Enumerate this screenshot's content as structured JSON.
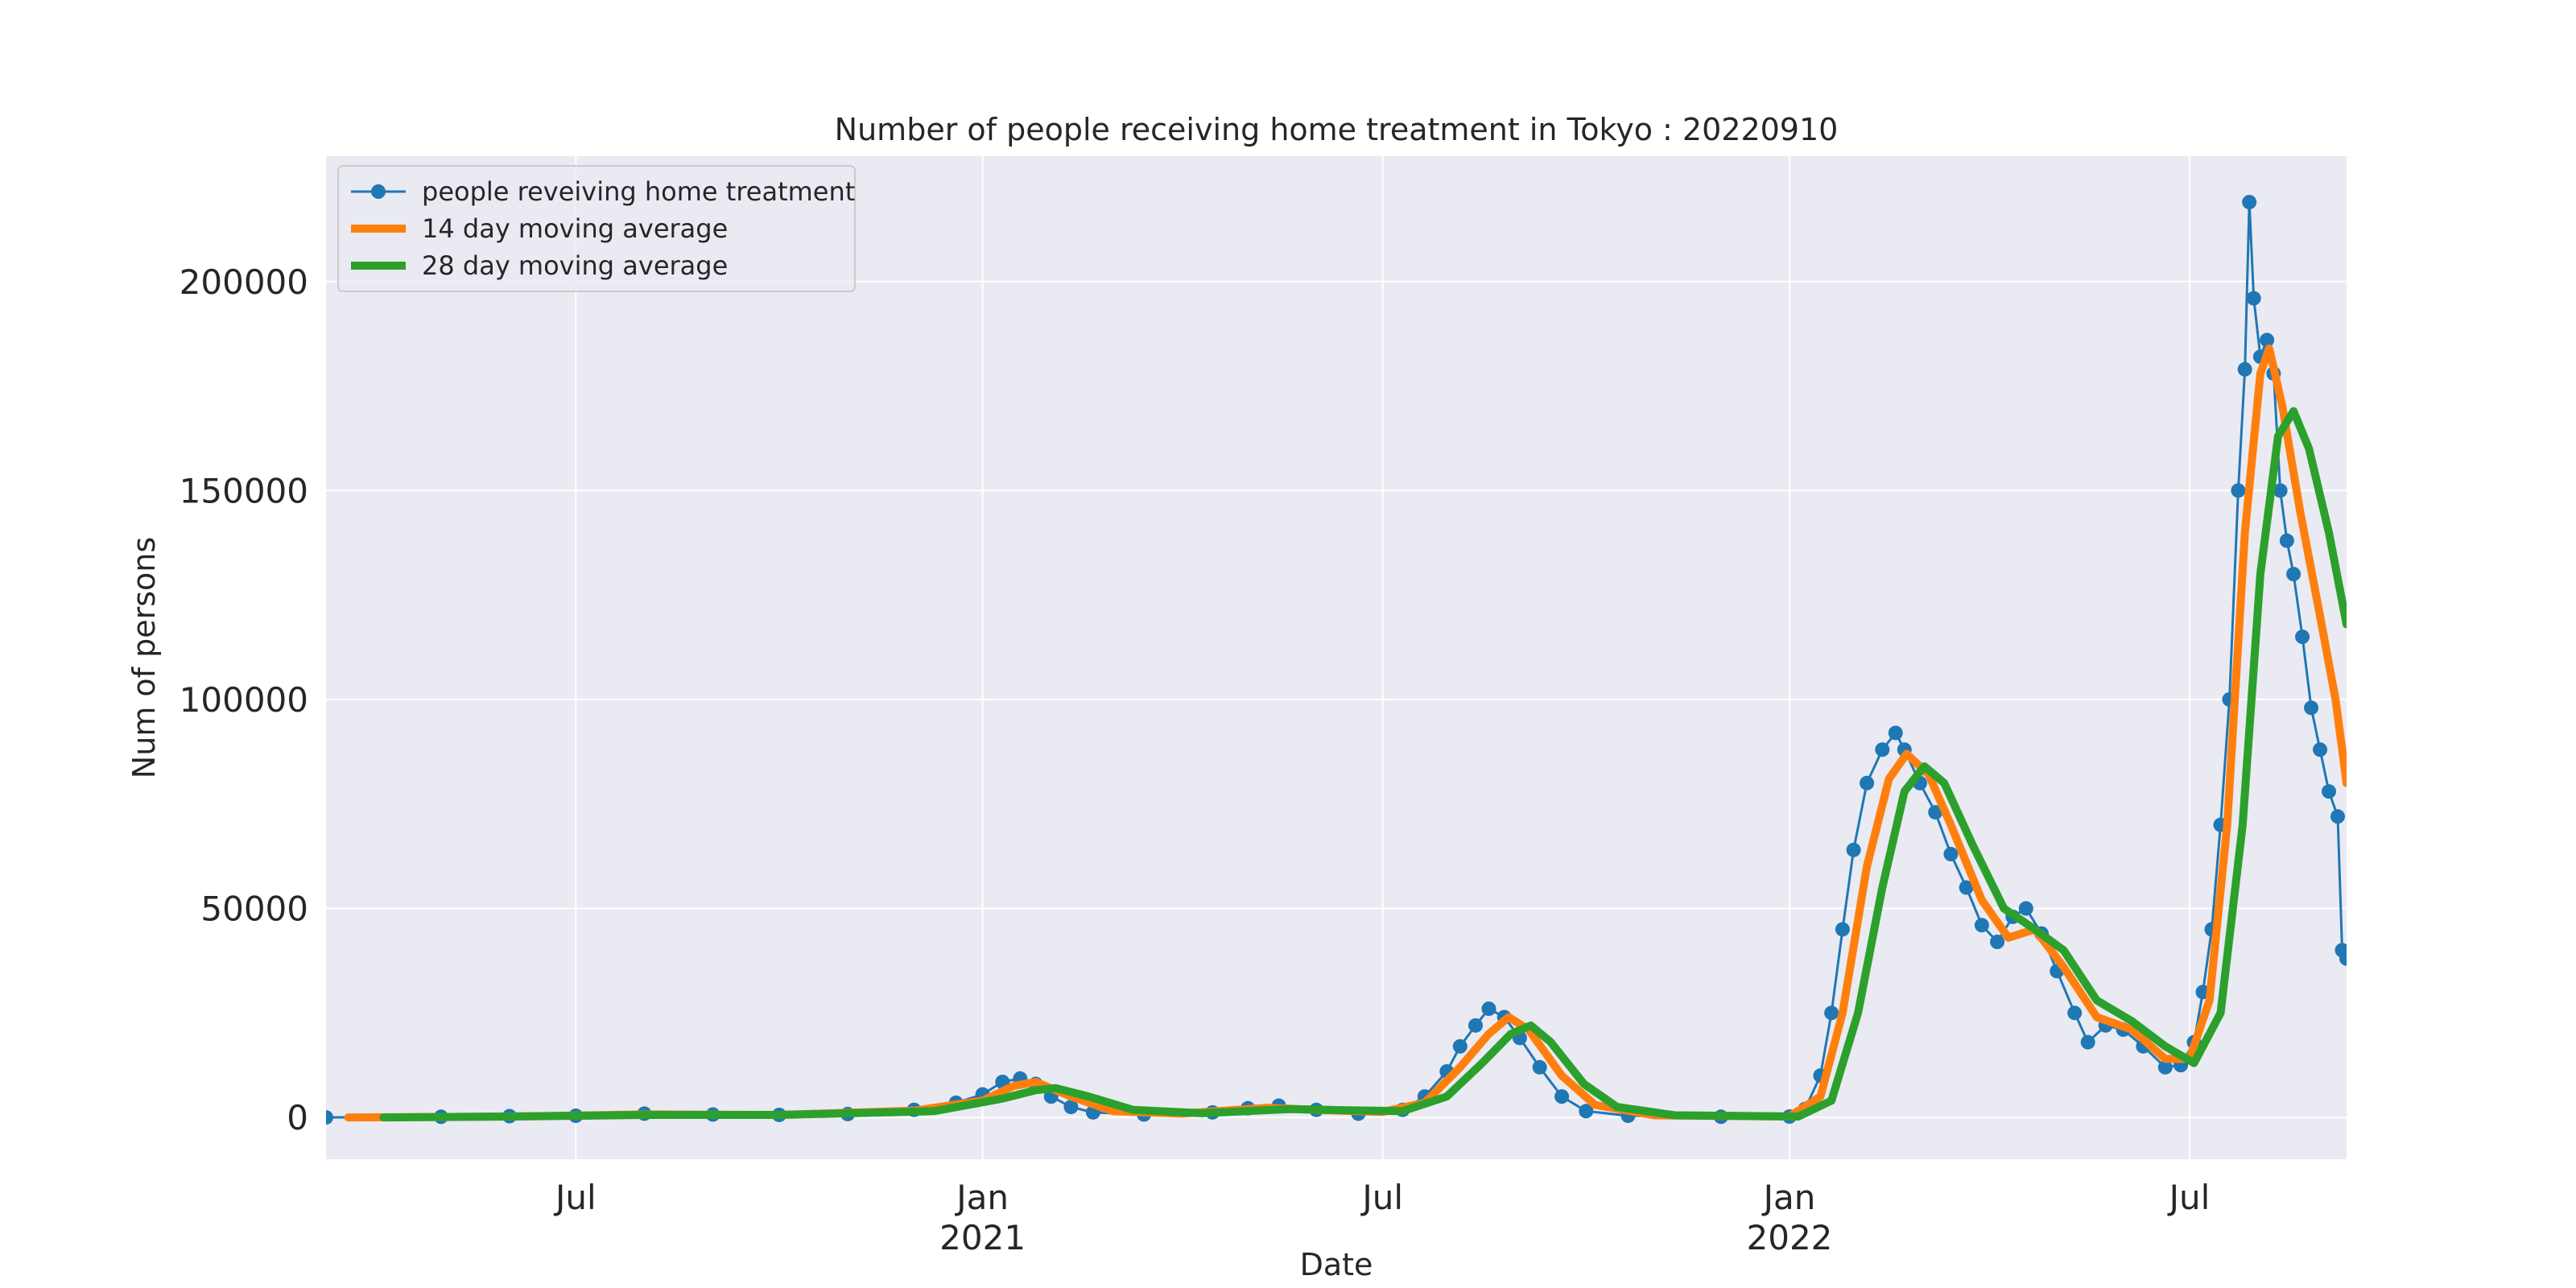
{
  "chart_data": {
    "type": "line",
    "title": "Number of people receiving home treatment in Tokyo : 20220910",
    "xlabel": "Date",
    "ylabel": "Num of persons",
    "x_start": "2020-03-10",
    "x_end": "2022-09-10",
    "ylim": [
      -10000,
      230000
    ],
    "y_ticks": [
      0,
      50000,
      100000,
      150000,
      200000
    ],
    "x_ticks": [
      {
        "date": "2020-07-01",
        "label": "Jul",
        "sublabel": ""
      },
      {
        "date": "2021-01-01",
        "label": "Jan",
        "sublabel": "2021"
      },
      {
        "date": "2021-07-01",
        "label": "Jul",
        "sublabel": ""
      },
      {
        "date": "2022-01-01",
        "label": "Jan",
        "sublabel": "2022"
      },
      {
        "date": "2022-07-01",
        "label": "Jul",
        "sublabel": ""
      }
    ],
    "grid": true,
    "legend_position": "top-left",
    "colors": {
      "background": "#eaeaf2",
      "grid": "#ffffff",
      "raw": "#1f77b4",
      "ma14": "#ff7f0e",
      "ma28": "#2ca02c"
    },
    "series": [
      {
        "name": "people reveiving home treatment",
        "style": "line-marker",
        "color": "#1f77b4",
        "points": [
          [
            "2020-03-10",
            0
          ],
          [
            "2020-05-01",
            150
          ],
          [
            "2020-06-01",
            300
          ],
          [
            "2020-07-01",
            400
          ],
          [
            "2020-08-01",
            900
          ],
          [
            "2020-09-01",
            700
          ],
          [
            "2020-10-01",
            600
          ],
          [
            "2020-11-01",
            800
          ],
          [
            "2020-12-01",
            1800
          ],
          [
            "2020-12-20",
            3500
          ],
          [
            "2021-01-01",
            5500
          ],
          [
            "2021-01-10",
            8500
          ],
          [
            "2021-01-18",
            9300
          ],
          [
            "2021-01-25",
            8000
          ],
          [
            "2021-02-01",
            5000
          ],
          [
            "2021-02-10",
            2500
          ],
          [
            "2021-02-20",
            1200
          ],
          [
            "2021-03-15",
            700
          ],
          [
            "2021-04-15",
            1200
          ],
          [
            "2021-05-01",
            2200
          ],
          [
            "2021-05-15",
            2800
          ],
          [
            "2021-06-01",
            1800
          ],
          [
            "2021-06-20",
            900
          ],
          [
            "2021-07-10",
            1800
          ],
          [
            "2021-07-20",
            5000
          ],
          [
            "2021-07-30",
            11000
          ],
          [
            "2021-08-05",
            17000
          ],
          [
            "2021-08-12",
            22000
          ],
          [
            "2021-08-18",
            26000
          ],
          [
            "2021-08-25",
            24000
          ],
          [
            "2021-09-01",
            19000
          ],
          [
            "2021-09-10",
            12000
          ],
          [
            "2021-09-20",
            5000
          ],
          [
            "2021-10-01",
            1500
          ],
          [
            "2021-10-20",
            400
          ],
          [
            "2021-12-01",
            150
          ],
          [
            "2022-01-01",
            200
          ],
          [
            "2022-01-08",
            2000
          ],
          [
            "2022-01-15",
            10000
          ],
          [
            "2022-01-20",
            25000
          ],
          [
            "2022-01-25",
            45000
          ],
          [
            "2022-01-30",
            64000
          ],
          [
            "2022-02-05",
            80000
          ],
          [
            "2022-02-12",
            88000
          ],
          [
            "2022-02-18",
            92000
          ],
          [
            "2022-02-22",
            88000
          ],
          [
            "2022-03-01",
            80000
          ],
          [
            "2022-03-08",
            73000
          ],
          [
            "2022-03-15",
            63000
          ],
          [
            "2022-03-22",
            55000
          ],
          [
            "2022-03-29",
            46000
          ],
          [
            "2022-04-05",
            42000
          ],
          [
            "2022-04-12",
            48000
          ],
          [
            "2022-04-18",
            50000
          ],
          [
            "2022-04-25",
            44000
          ],
          [
            "2022-05-02",
            35000
          ],
          [
            "2022-05-10",
            25000
          ],
          [
            "2022-05-16",
            18000
          ],
          [
            "2022-05-24",
            22000
          ],
          [
            "2022-06-01",
            21000
          ],
          [
            "2022-06-10",
            17000
          ],
          [
            "2022-06-20",
            12000
          ],
          [
            "2022-06-27",
            12500
          ],
          [
            "2022-07-03",
            18000
          ],
          [
            "2022-07-07",
            30000
          ],
          [
            "2022-07-11",
            45000
          ],
          [
            "2022-07-15",
            70000
          ],
          [
            "2022-07-19",
            100000
          ],
          [
            "2022-07-23",
            150000
          ],
          [
            "2022-07-26",
            179000
          ],
          [
            "2022-07-28",
            219000
          ],
          [
            "2022-07-30",
            196000
          ],
          [
            "2022-08-02",
            182000
          ],
          [
            "2022-08-05",
            186000
          ],
          [
            "2022-08-08",
            178000
          ],
          [
            "2022-08-11",
            150000
          ],
          [
            "2022-08-14",
            138000
          ],
          [
            "2022-08-17",
            130000
          ],
          [
            "2022-08-21",
            115000
          ],
          [
            "2022-08-25",
            98000
          ],
          [
            "2022-08-29",
            88000
          ],
          [
            "2022-09-02",
            78000
          ],
          [
            "2022-09-06",
            72000
          ],
          [
            "2022-09-08",
            40000
          ],
          [
            "2022-09-10",
            38000
          ]
        ]
      },
      {
        "name": "14 day moving average",
        "style": "line",
        "color": "#ff7f0e",
        "points": [
          [
            "2020-03-20",
            0
          ],
          [
            "2020-05-01",
            100
          ],
          [
            "2020-06-15",
            300
          ],
          [
            "2020-08-01",
            700
          ],
          [
            "2020-10-01",
            600
          ],
          [
            "2020-12-01",
            1600
          ],
          [
            "2021-01-01",
            4000
          ],
          [
            "2021-01-15",
            7500
          ],
          [
            "2021-01-25",
            8500
          ],
          [
            "2021-02-10",
            5000
          ],
          [
            "2021-03-01",
            1500
          ],
          [
            "2021-04-01",
            900
          ],
          [
            "2021-05-10",
            2300
          ],
          [
            "2021-06-01",
            1800
          ],
          [
            "2021-07-01",
            1300
          ],
          [
            "2021-07-20",
            3500
          ],
          [
            "2021-08-05",
            12000
          ],
          [
            "2021-08-18",
            20000
          ],
          [
            "2021-08-27",
            24000
          ],
          [
            "2021-09-05",
            21000
          ],
          [
            "2021-09-20",
            10000
          ],
          [
            "2021-10-05",
            3000
          ],
          [
            "2021-11-01",
            500
          ],
          [
            "2022-01-01",
            200
          ],
          [
            "2022-01-15",
            5000
          ],
          [
            "2022-01-25",
            25000
          ],
          [
            "2022-02-05",
            60000
          ],
          [
            "2022-02-15",
            81000
          ],
          [
            "2022-02-23",
            87000
          ],
          [
            "2022-03-05",
            82000
          ],
          [
            "2022-03-15",
            70000
          ],
          [
            "2022-03-29",
            52000
          ],
          [
            "2022-04-10",
            43000
          ],
          [
            "2022-04-22",
            45000
          ],
          [
            "2022-05-05",
            36000
          ],
          [
            "2022-05-20",
            24000
          ],
          [
            "2022-06-05",
            21000
          ],
          [
            "2022-06-20",
            14000
          ],
          [
            "2022-07-01",
            14000
          ],
          [
            "2022-07-10",
            28000
          ],
          [
            "2022-07-18",
            70000
          ],
          [
            "2022-07-26",
            140000
          ],
          [
            "2022-08-02",
            178000
          ],
          [
            "2022-08-06",
            184000
          ],
          [
            "2022-08-12",
            170000
          ],
          [
            "2022-08-20",
            145000
          ],
          [
            "2022-08-29",
            120000
          ],
          [
            "2022-09-05",
            100000
          ],
          [
            "2022-09-10",
            80000
          ]
        ]
      },
      {
        "name": "28 day moving average",
        "style": "line",
        "color": "#2ca02c",
        "points": [
          [
            "2020-04-05",
            0
          ],
          [
            "2020-06-01",
            200
          ],
          [
            "2020-08-01",
            600
          ],
          [
            "2020-10-01",
            600
          ],
          [
            "2020-12-10",
            1500
          ],
          [
            "2021-01-10",
            4500
          ],
          [
            "2021-01-25",
            6500
          ],
          [
            "2021-02-03",
            7000
          ],
          [
            "2021-02-18",
            5000
          ],
          [
            "2021-03-10",
            1800
          ],
          [
            "2021-04-10",
            1000
          ],
          [
            "2021-05-20",
            2000
          ],
          [
            "2021-06-15",
            1700
          ],
          [
            "2021-07-10",
            1500
          ],
          [
            "2021-07-30",
            5000
          ],
          [
            "2021-08-15",
            13000
          ],
          [
            "2021-08-28",
            20000
          ],
          [
            "2021-09-06",
            22000
          ],
          [
            "2021-09-15",
            18000
          ],
          [
            "2021-09-30",
            8000
          ],
          [
            "2021-10-15",
            2500
          ],
          [
            "2021-11-10",
            500
          ],
          [
            "2022-01-05",
            200
          ],
          [
            "2022-01-20",
            4000
          ],
          [
            "2022-02-01",
            25000
          ],
          [
            "2022-02-12",
            55000
          ],
          [
            "2022-02-22",
            78000
          ],
          [
            "2022-03-03",
            84000
          ],
          [
            "2022-03-12",
            80000
          ],
          [
            "2022-03-25",
            65000
          ],
          [
            "2022-04-08",
            50000
          ],
          [
            "2022-04-22",
            45000
          ],
          [
            "2022-05-05",
            40000
          ],
          [
            "2022-05-20",
            28000
          ],
          [
            "2022-06-05",
            23000
          ],
          [
            "2022-06-20",
            17000
          ],
          [
            "2022-07-03",
            13000
          ],
          [
            "2022-07-15",
            25000
          ],
          [
            "2022-07-25",
            70000
          ],
          [
            "2022-08-02",
            130000
          ],
          [
            "2022-08-10",
            163000
          ],
          [
            "2022-08-17",
            169000
          ],
          [
            "2022-08-24",
            160000
          ],
          [
            "2022-09-02",
            140000
          ],
          [
            "2022-09-10",
            118000
          ]
        ]
      }
    ]
  }
}
